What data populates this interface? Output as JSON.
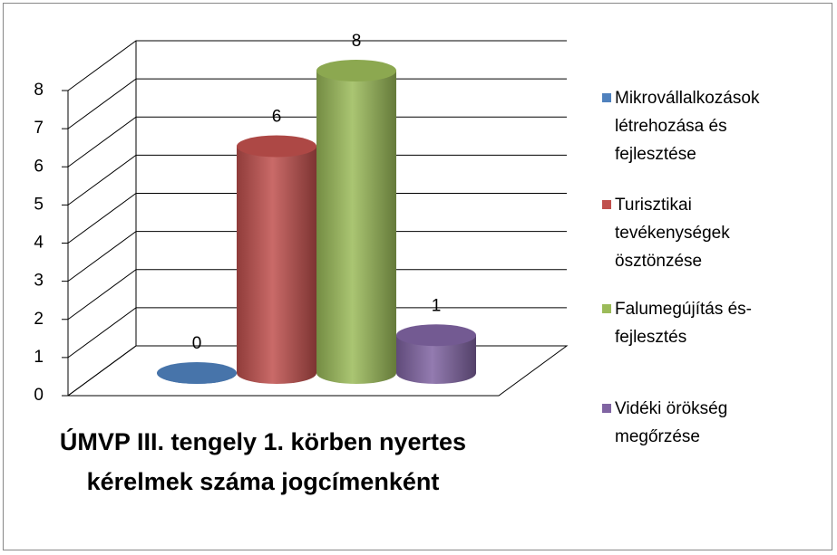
{
  "chart_data": {
    "type": "bar3d",
    "title": "ÚMVP III. tengely 1. körben nyertes kérelmek száma jogcímenként",
    "series": [
      {
        "name": "Mikrovállalkozások létrehozása és fejlesztése",
        "color": "#4f81bd",
        "values": [
          0
        ]
      },
      {
        "name": "Turisztikai tevékenységek ösztönzése",
        "color": "#c0504d",
        "values": [
          6
        ]
      },
      {
        "name": "Falumegújítás és-fejlesztés",
        "color": "#9bbb59",
        "values": [
          8
        ]
      },
      {
        "name": "Vidéki örökség megőrzése",
        "color": "#8064a2",
        "values": [
          1
        ]
      }
    ],
    "ylim": [
      0,
      8
    ],
    "yticks": [
      0,
      1,
      2,
      3,
      4,
      5,
      6,
      7,
      8
    ],
    "grid": true,
    "legend": "right"
  }
}
